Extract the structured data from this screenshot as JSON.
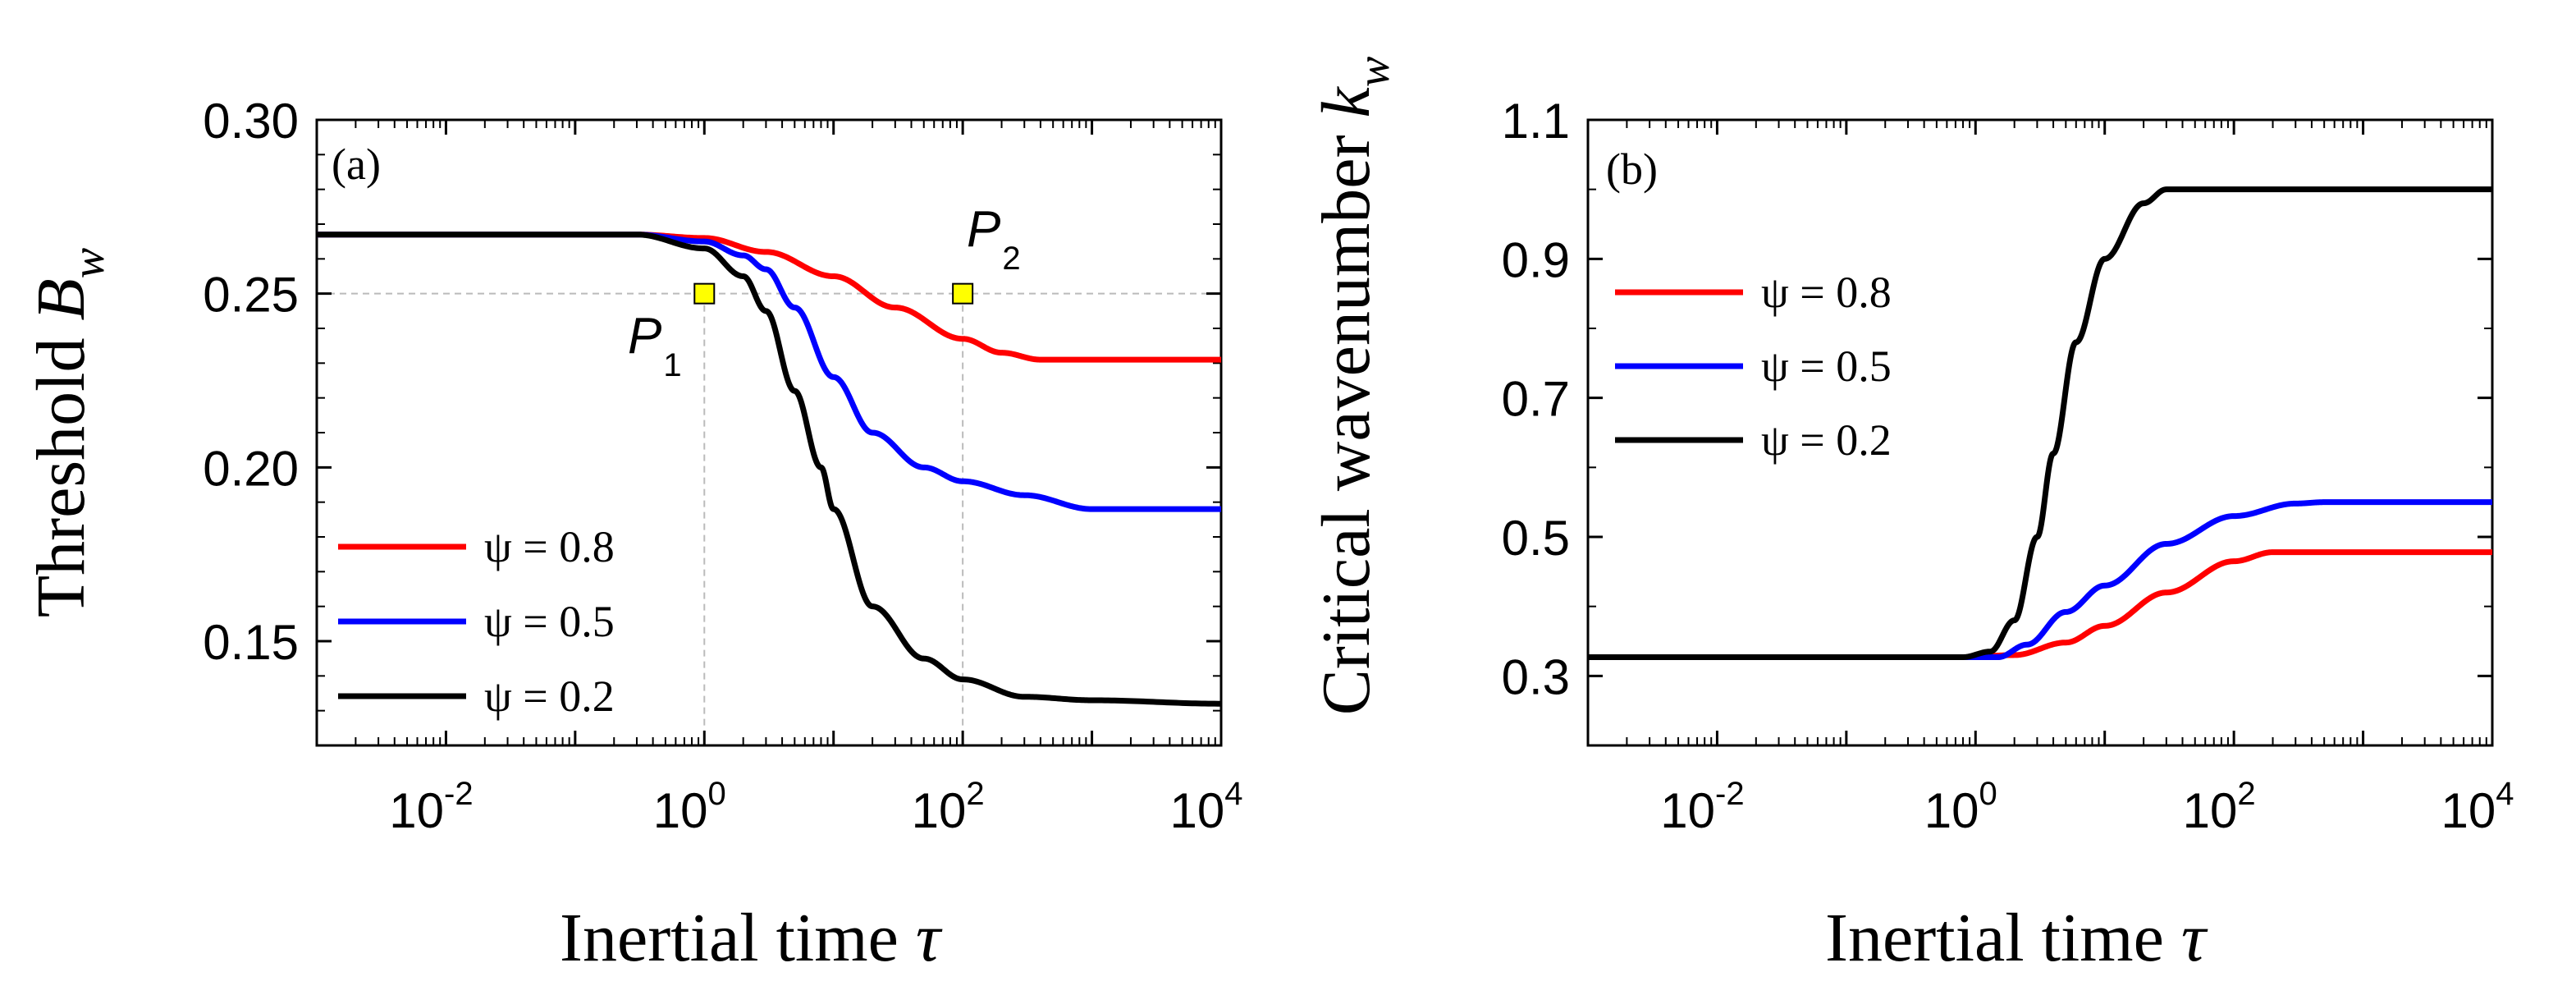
{
  "chart_data": [
    {
      "type": "line",
      "panel_label": "(a)",
      "ylabel": "Threshold",
      "ylabel_symbol": "B",
      "ylabel_sub": "w",
      "xlabel": "Inertial time",
      "xlabel_symbol": "τ",
      "xscale": "log",
      "xlim": [
        0.001,
        10000
      ],
      "ylim": [
        0.12,
        0.3
      ],
      "xticks": [
        {
          "value": 0.01,
          "base": "10",
          "exp": "-2"
        },
        {
          "value": 1,
          "base": "10",
          "exp": "0"
        },
        {
          "value": 100,
          "base": "10",
          "exp": "2"
        },
        {
          "value": 10000,
          "base": "10",
          "exp": "4"
        }
      ],
      "yticks": [
        {
          "value": 0.15,
          "label": "0.15"
        },
        {
          "value": 0.2,
          "label": "0.20"
        },
        {
          "value": 0.25,
          "label": "0.25"
        },
        {
          "value": 0.3,
          "label": "0.30"
        }
      ],
      "legend_position": "bottom-left",
      "reference_lines": {
        "y": 0.25,
        "x": [
          1,
          100
        ]
      },
      "markers": [
        {
          "name": "P",
          "sub": "1",
          "x": 1,
          "y": 0.25
        },
        {
          "name": "P",
          "sub": "2",
          "x": 100,
          "y": 0.25
        }
      ],
      "series": [
        {
          "name": "ψ = 0.8",
          "color": "#ff0000",
          "points": [
            [
              0.001,
              0.267
            ],
            [
              0.3,
              0.267
            ],
            [
              1,
              0.266
            ],
            [
              3,
              0.262
            ],
            [
              10,
              0.255
            ],
            [
              30,
              0.246
            ],
            [
              100,
              0.237
            ],
            [
              200,
              0.233
            ],
            [
              400,
              0.231
            ],
            [
              1000,
              0.231
            ],
            [
              10000,
              0.231
            ]
          ]
        },
        {
          "name": "ψ = 0.5",
          "color": "#0000ff",
          "points": [
            [
              0.001,
              0.267
            ],
            [
              0.3,
              0.267
            ],
            [
              1,
              0.265
            ],
            [
              2,
              0.261
            ],
            [
              3,
              0.257
            ],
            [
              5,
              0.246
            ],
            [
              10,
              0.226
            ],
            [
              20,
              0.21
            ],
            [
              50,
              0.2
            ],
            [
              100,
              0.196
            ],
            [
              300,
              0.192
            ],
            [
              1000,
              0.188
            ],
            [
              10000,
              0.188
            ]
          ]
        },
        {
          "name": "ψ = 0.2",
          "color": "#000000",
          "points": [
            [
              0.001,
              0.267
            ],
            [
              0.3,
              0.267
            ],
            [
              1,
              0.263
            ],
            [
              2,
              0.255
            ],
            [
              3,
              0.245
            ],
            [
              5,
              0.222
            ],
            [
              8,
              0.2
            ],
            [
              10,
              0.188
            ],
            [
              20,
              0.16
            ],
            [
              50,
              0.145
            ],
            [
              100,
              0.139
            ],
            [
              300,
              0.134
            ],
            [
              1000,
              0.133
            ],
            [
              10000,
              0.132
            ]
          ]
        }
      ]
    },
    {
      "type": "line",
      "panel_label": "(b)",
      "ylabel": "Critical wavenumber",
      "ylabel_symbol": "k",
      "ylabel_sub": "w",
      "xlabel": "Inertial time",
      "xlabel_symbol": "τ",
      "xscale": "log",
      "xlim": [
        0.001,
        10000
      ],
      "ylim": [
        0.2,
        1.1
      ],
      "xticks": [
        {
          "value": 0.01,
          "base": "10",
          "exp": "-2"
        },
        {
          "value": 1,
          "base": "10",
          "exp": "0"
        },
        {
          "value": 100,
          "base": "10",
          "exp": "2"
        },
        {
          "value": 10000,
          "base": "10",
          "exp": "4"
        }
      ],
      "yticks": [
        {
          "value": 0.3,
          "label": "0.3"
        },
        {
          "value": 0.5,
          "label": "0.5"
        },
        {
          "value": 0.7,
          "label": "0.7"
        },
        {
          "value": 0.9,
          "label": "0.9"
        },
        {
          "value": 1.1,
          "label": "1.1"
        }
      ],
      "legend_position": "top-left",
      "reference_lines": null,
      "markers": [],
      "series": [
        {
          "name": "ψ = 0.8",
          "color": "#ff0000",
          "points": [
            [
              0.001,
              0.327
            ],
            [
              0.8,
              0.327
            ],
            [
              2,
              0.33
            ],
            [
              5,
              0.348
            ],
            [
              10,
              0.372
            ],
            [
              30,
              0.42
            ],
            [
              100,
              0.465
            ],
            [
              200,
              0.478
            ],
            [
              10000,
              0.478
            ]
          ]
        },
        {
          "name": "ψ = 0.5",
          "color": "#0000ff",
          "points": [
            [
              0.001,
              0.327
            ],
            [
              1.5,
              0.327
            ],
            [
              2.5,
              0.345
            ],
            [
              5,
              0.392
            ],
            [
              10,
              0.43
            ],
            [
              30,
              0.49
            ],
            [
              100,
              0.53
            ],
            [
              300,
              0.548
            ],
            [
              500,
              0.55
            ],
            [
              10000,
              0.55
            ]
          ]
        },
        {
          "name": "ψ = 0.2",
          "color": "#000000",
          "points": [
            [
              0.001,
              0.327
            ],
            [
              0.8,
              0.327
            ],
            [
              1.3,
              0.335
            ],
            [
              2,
              0.38
            ],
            [
              3,
              0.5
            ],
            [
              4,
              0.62
            ],
            [
              6,
              0.78
            ],
            [
              10,
              0.9
            ],
            [
              20,
              0.98
            ],
            [
              30,
              1.0
            ],
            [
              10000,
              1.0
            ]
          ]
        }
      ]
    }
  ]
}
